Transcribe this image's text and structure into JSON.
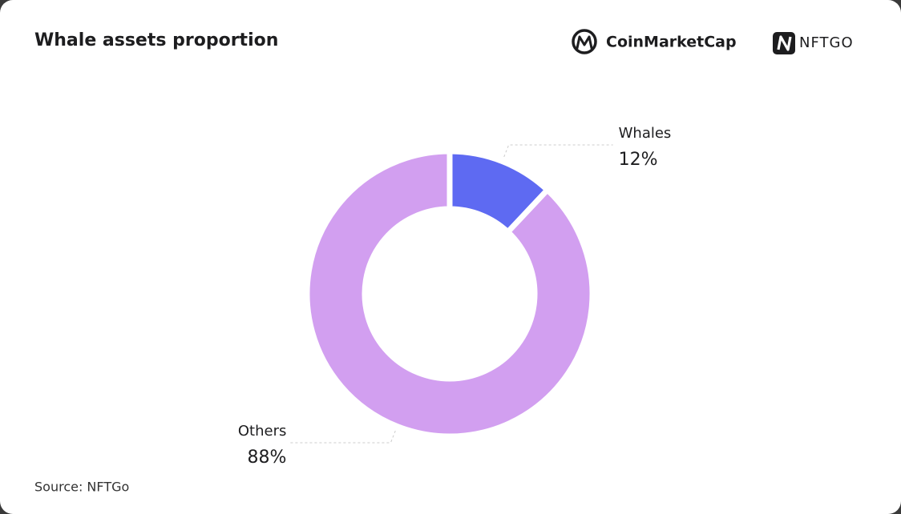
{
  "chart_data": {
    "type": "pie",
    "title": "Whale assets proportion",
    "categories": [
      "Whales",
      "Others"
    ],
    "values": [
      12,
      88
    ],
    "value_labels": [
      "12%",
      "88%"
    ],
    "colors": [
      "#5e6af2",
      "#d29ff0"
    ],
    "donut": true
  },
  "logos": [
    "CoinMarketCap",
    "NFTGO"
  ],
  "source": "Source: NFTGo"
}
